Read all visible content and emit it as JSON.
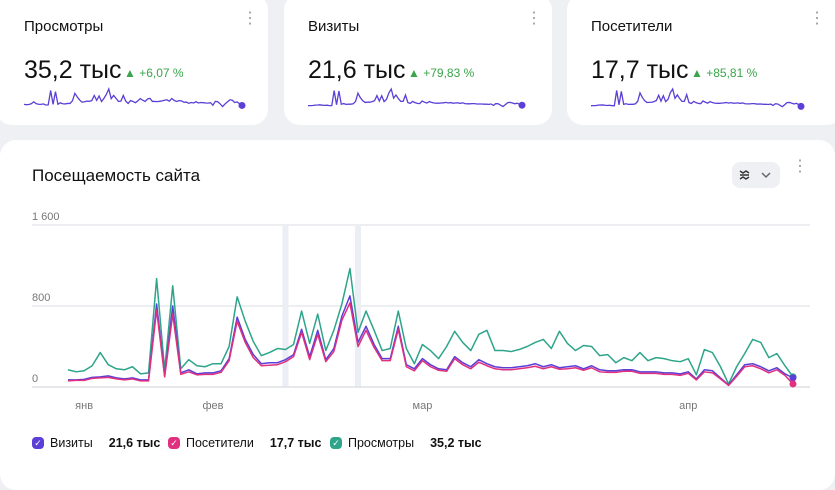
{
  "cards": [
    {
      "title": "Просмотры",
      "value": "35,2 тыс",
      "delta": "+6,07 %"
    },
    {
      "title": "Визиты",
      "value": "21,6 тыс",
      "delta": "+79,83 %"
    },
    {
      "title": "Посетители",
      "value": "17,7 тыс",
      "delta": "+85,81 %"
    }
  ],
  "main": {
    "title": "Посещаемость сайта"
  },
  "colors": {
    "visits": "#5b3fd6",
    "visitors": "#e0307f",
    "views": "#2ea58a",
    "up": "#3aa54a"
  },
  "chart_data": {
    "type": "line",
    "title": "Посещаемость сайта",
    "ylim": [
      0,
      1600
    ],
    "yticks": [
      "0",
      "800",
      "1 600"
    ],
    "ytick_values": [
      0,
      800,
      1600
    ],
    "xticks": [
      {
        "label": "янв",
        "index": 2
      },
      {
        "label": "фев",
        "index": 18
      },
      {
        "label": "мар",
        "index": 44
      },
      {
        "label": "апр",
        "index": 77
      }
    ],
    "highlight_indices": [
      27,
      36
    ],
    "series": [
      {
        "name": "Визиты",
        "total": "21,6 тыс",
        "key": "visits",
        "values": [
          70,
          70,
          75,
          95,
          100,
          110,
          90,
          80,
          90,
          70,
          70,
          820,
          110,
          800,
          140,
          170,
          130,
          140,
          140,
          160,
          280,
          690,
          470,
          320,
          230,
          240,
          240,
          270,
          320,
          570,
          300,
          560,
          270,
          380,
          700,
          900,
          440,
          600,
          420,
          280,
          280,
          600,
          220,
          180,
          280,
          220,
          180,
          170,
          300,
          240,
          200,
          270,
          230,
          200,
          190,
          190,
          200,
          210,
          230,
          200,
          220,
          190,
          200,
          210,
          180,
          210,
          170,
          160,
          160,
          170,
          170,
          150,
          150,
          150,
          140,
          140,
          130,
          150,
          80,
          170,
          160,
          90,
          20,
          120,
          220,
          230,
          200,
          160,
          190,
          130,
          90
        ]
      },
      {
        "name": "Посетители",
        "total": "17,7 тыс",
        "key": "visitors",
        "values": [
          60,
          65,
          65,
          85,
          90,
          95,
          80,
          70,
          80,
          60,
          60,
          760,
          100,
          720,
          125,
          150,
          120,
          125,
          125,
          145,
          260,
          650,
          440,
          290,
          210,
          215,
          220,
          250,
          300,
          540,
          270,
          520,
          250,
          350,
          660,
          830,
          400,
          560,
          390,
          260,
          260,
          570,
          200,
          160,
          260,
          200,
          165,
          155,
          280,
          220,
          180,
          245,
          210,
          180,
          170,
          170,
          180,
          190,
          205,
          180,
          200,
          175,
          180,
          190,
          165,
          190,
          150,
          145,
          145,
          155,
          155,
          135,
          135,
          135,
          125,
          125,
          115,
          135,
          70,
          150,
          140,
          80,
          15,
          105,
          200,
          210,
          180,
          140,
          170,
          115,
          30
        ]
      },
      {
        "name": "Просмотры",
        "total": "35,2 тыс",
        "key": "views",
        "values": [
          170,
          150,
          160,
          210,
          340,
          220,
          180,
          170,
          200,
          130,
          140,
          1070,
          170,
          1000,
          180,
          270,
          210,
          200,
          230,
          230,
          400,
          890,
          650,
          450,
          310,
          340,
          380,
          370,
          420,
          750,
          430,
          720,
          360,
          560,
          820,
          1170,
          540,
          750,
          560,
          360,
          380,
          750,
          380,
          230,
          420,
          360,
          280,
          400,
          550,
          440,
          360,
          520,
          560,
          360,
          360,
          350,
          370,
          400,
          440,
          470,
          380,
          550,
          430,
          360,
          410,
          400,
          310,
          320,
          240,
          290,
          260,
          340,
          260,
          290,
          280,
          260,
          250,
          280,
          120,
          370,
          340,
          200,
          30,
          200,
          330,
          470,
          440,
          290,
          330,
          210,
          100
        ]
      }
    ]
  }
}
